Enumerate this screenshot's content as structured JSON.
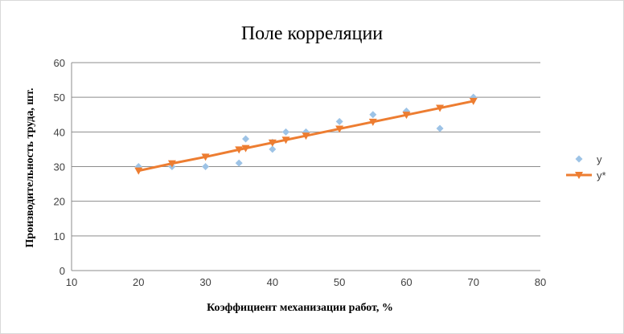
{
  "chart_data": {
    "type": "scatter",
    "title": "Поле корреляции",
    "xlabel": "Коэффициент механизации работ, %",
    "ylabel": "Производительность труда, шт.",
    "xlim": [
      10,
      80
    ],
    "ylim": [
      0,
      60
    ],
    "x_ticks": [
      10,
      20,
      30,
      40,
      50,
      60,
      70,
      80
    ],
    "y_ticks": [
      0,
      10,
      20,
      30,
      40,
      50,
      60
    ],
    "grid": "horizontal",
    "legend_position": "right",
    "series": [
      {
        "name": "y",
        "kind": "scatter",
        "marker": "diamond",
        "color": "#9DC3E6",
        "points": [
          {
            "x": 20,
            "y": 30
          },
          {
            "x": 25,
            "y": 30
          },
          {
            "x": 30,
            "y": 30
          },
          {
            "x": 35,
            "y": 31
          },
          {
            "x": 36,
            "y": 38
          },
          {
            "x": 40,
            "y": 35
          },
          {
            "x": 40,
            "y": 37
          },
          {
            "x": 42,
            "y": 40
          },
          {
            "x": 45,
            "y": 40
          },
          {
            "x": 50,
            "y": 43
          },
          {
            "x": 55,
            "y": 45
          },
          {
            "x": 60,
            "y": 46
          },
          {
            "x": 65,
            "y": 41
          },
          {
            "x": 70,
            "y": 50
          }
        ]
      },
      {
        "name": "y*",
        "kind": "line",
        "marker": "triangle-down",
        "color": "#ED7D31",
        "points": [
          {
            "x": 20,
            "y": 28.8
          },
          {
            "x": 25,
            "y": 30.9
          },
          {
            "x": 30,
            "y": 32.8
          },
          {
            "x": 35,
            "y": 34.9
          },
          {
            "x": 36,
            "y": 35.3
          },
          {
            "x": 40,
            "y": 36.9
          },
          {
            "x": 42,
            "y": 37.7
          },
          {
            "x": 45,
            "y": 38.9
          },
          {
            "x": 50,
            "y": 40.9
          },
          {
            "x": 55,
            "y": 42.9
          },
          {
            "x": 60,
            "y": 44.9
          },
          {
            "x": 65,
            "y": 46.9
          },
          {
            "x": 70,
            "y": 48.9
          }
        ]
      }
    ]
  }
}
